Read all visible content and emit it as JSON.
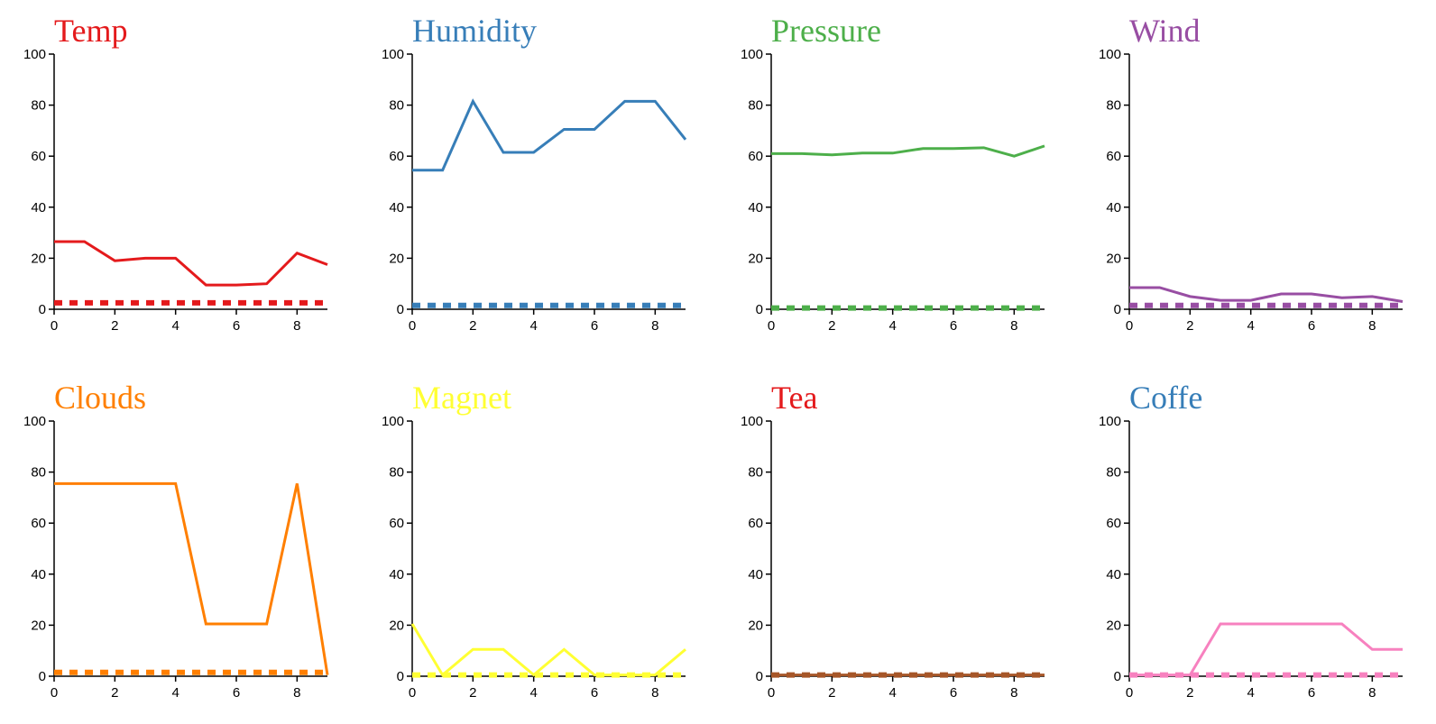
{
  "chart_data": [
    {
      "type": "line",
      "title": "Temp",
      "color": "#e41a1c",
      "x": [
        0,
        1,
        2,
        3,
        4,
        5,
        6,
        7,
        8,
        9
      ],
      "values": [
        26.5,
        26.5,
        19,
        20,
        20,
        9.5,
        9.5,
        10,
        22,
        17.5
      ],
      "baseline": [
        2.5,
        2.5,
        2.5,
        2.5,
        2.5,
        2.5,
        2.5,
        2.5,
        2.5,
        2.5
      ],
      "xlim": [
        0,
        9
      ],
      "ylim": [
        0,
        100
      ],
      "xticks": [
        0,
        2,
        4,
        6,
        8
      ],
      "yticks": [
        0,
        20,
        40,
        60,
        80,
        100
      ]
    },
    {
      "type": "line",
      "title": "Humidity",
      "color": "#377eb8",
      "x": [
        0,
        1,
        2,
        3,
        4,
        5,
        6,
        7,
        8,
        9
      ],
      "values": [
        54.5,
        54.5,
        81.5,
        61.5,
        61.5,
        70.5,
        70.5,
        81.5,
        81.5,
        66.5
      ],
      "baseline": [
        1.5,
        1.5,
        1.5,
        1.5,
        1.5,
        1.5,
        1.5,
        1.5,
        1.5,
        1.5
      ],
      "xlim": [
        0,
        9
      ],
      "ylim": [
        0,
        100
      ],
      "xticks": [
        0,
        2,
        4,
        6,
        8
      ],
      "yticks": [
        0,
        20,
        40,
        60,
        80,
        100
      ]
    },
    {
      "type": "line",
      "title": "Pressure",
      "color": "#4daf4a",
      "x": [
        0,
        1,
        2,
        3,
        4,
        5,
        6,
        7,
        8,
        9
      ],
      "values": [
        61,
        61,
        60.5,
        61.2,
        61.2,
        63,
        63,
        63.3,
        60,
        64
      ],
      "baseline": [
        0.5,
        0.5,
        0.5,
        0.5,
        0.5,
        0.5,
        0.5,
        0.5,
        0.5,
        0.5
      ],
      "xlim": [
        0,
        9
      ],
      "ylim": [
        0,
        100
      ],
      "xticks": [
        0,
        2,
        4,
        6,
        8
      ],
      "yticks": [
        0,
        20,
        40,
        60,
        80,
        100
      ]
    },
    {
      "type": "line",
      "title": "Wind",
      "color": "#984ea3",
      "x": [
        0,
        1,
        2,
        3,
        4,
        5,
        6,
        7,
        8,
        9
      ],
      "values": [
        8.5,
        8.5,
        5,
        3.5,
        3.5,
        6,
        6,
        4.5,
        5,
        3
      ],
      "baseline": [
        1.5,
        1.5,
        1.5,
        1.5,
        1.5,
        1.5,
        1.5,
        1.5,
        1.5,
        1.5
      ],
      "xlim": [
        0,
        9
      ],
      "ylim": [
        0,
        100
      ],
      "xticks": [
        0,
        2,
        4,
        6,
        8
      ],
      "yticks": [
        0,
        20,
        40,
        60,
        80,
        100
      ]
    },
    {
      "type": "line",
      "title": "Clouds",
      "color": "#ff7f00",
      "x": [
        0,
        1,
        2,
        3,
        4,
        5,
        6,
        7,
        8,
        9
      ],
      "values": [
        75.5,
        75.5,
        75.5,
        75.5,
        75.5,
        20.5,
        20.5,
        20.5,
        75.5,
        0.5
      ],
      "baseline": [
        1.5,
        1.5,
        1.5,
        1.5,
        1.5,
        1.5,
        1.5,
        1.5,
        1.5,
        1.5
      ],
      "xlim": [
        0,
        9
      ],
      "ylim": [
        0,
        100
      ],
      "xticks": [
        0,
        2,
        4,
        6,
        8
      ],
      "yticks": [
        0,
        20,
        40,
        60,
        80,
        100
      ]
    },
    {
      "type": "line",
      "title": "Magnet",
      "color": "#ffff33",
      "x": [
        0,
        1,
        2,
        3,
        4,
        5,
        6,
        7,
        8,
        9
      ],
      "values": [
        20.5,
        0.5,
        10.5,
        10.5,
        0.5,
        10.5,
        0.5,
        0.5,
        0.5,
        10.5
      ],
      "baseline": [
        0.5,
        0.5,
        0.5,
        0.5,
        0.5,
        0.5,
        0.5,
        0.5,
        0.5,
        0.5
      ],
      "xlim": [
        0,
        9
      ],
      "ylim": [
        0,
        100
      ],
      "xticks": [
        0,
        2,
        4,
        6,
        8
      ],
      "yticks": [
        0,
        20,
        40,
        60,
        80,
        100
      ]
    },
    {
      "type": "line",
      "title": "Tea",
      "color": "#e41a1c",
      "line_color": "#a65628",
      "x": [
        0,
        1,
        2,
        3,
        4,
        5,
        6,
        7,
        8,
        9
      ],
      "values": [
        0.5,
        0.5,
        0.5,
        0.5,
        0.5,
        0.5,
        0.5,
        0.5,
        0.5,
        0.5
      ],
      "baseline": [
        0.5,
        0.5,
        0.5,
        0.5,
        0.5,
        0.5,
        0.5,
        0.5,
        0.5,
        0.5
      ],
      "xlim": [
        0,
        9
      ],
      "ylim": [
        0,
        100
      ],
      "xticks": [
        0,
        2,
        4,
        6,
        8
      ],
      "yticks": [
        0,
        20,
        40,
        60,
        80,
        100
      ]
    },
    {
      "type": "line",
      "title": "Coffe",
      "color": "#377eb8",
      "line_color": "#f781bf",
      "x": [
        0,
        1,
        2,
        3,
        4,
        5,
        6,
        7,
        8,
        9
      ],
      "values": [
        0.5,
        0.5,
        0.5,
        20.5,
        20.5,
        20.5,
        20.5,
        20.5,
        10.5,
        10.5
      ],
      "baseline": [
        0.5,
        0.5,
        0.5,
        0.5,
        0.5,
        0.5,
        0.5,
        0.5,
        0.5,
        0.5
      ],
      "xlim": [
        0,
        9
      ],
      "ylim": [
        0,
        100
      ],
      "xticks": [
        0,
        2,
        4,
        6,
        8
      ],
      "yticks": [
        0,
        20,
        40,
        60,
        80,
        100
      ]
    }
  ]
}
